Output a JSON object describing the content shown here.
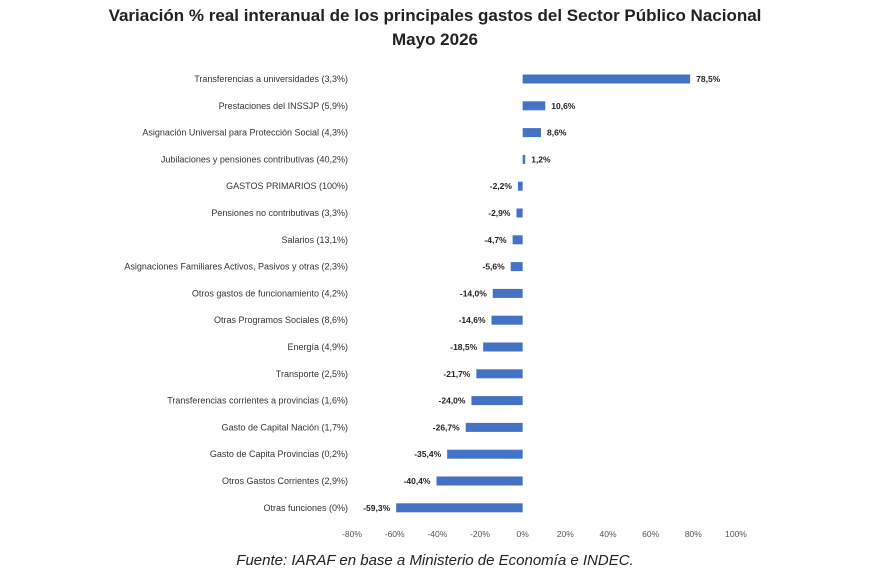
{
  "chart_data": {
    "type": "bar",
    "orientation": "horizontal",
    "title": "Variación % real interanual de los principales gastos del Sector Público Nacional",
    "subtitle": "Mayo 2026",
    "source": "Fuente: IARAF en base a Ministerio de Economía e INDEC.",
    "categories": [
      "Transferencias a universidades (3,3%)",
      "Prestaciones del INSSJP (5,9%)",
      "Asignación Universal para Protección Social (4,3%)",
      "Jubilaciones y pensiones contributivas (40,2%)",
      "GASTOS PRIMARIOS (100%)",
      "Pensiones no contributivas (3,3%)",
      "Salarios (13,1%)",
      "Asignaciones Familiares Activos, Pasivos y otras (2,3%)",
      "Otros gastos de funcionamiento (4,2%)",
      "Otras Programos Sociales  (8,6%)",
      "Energía (4,9%)",
      "Transporte (2,5%)",
      "Transferencias corrientes a provincias (1,6%)",
      "Gasto de Capital Nación (1,7%)",
      "Gasto de Capita Provincias (0,2%)",
      "Otros Gastos Corrientes     (2,9%)",
      "Otras funciones   (0%)"
    ],
    "values": [
      78.5,
      10.6,
      8.6,
      1.2,
      -2.2,
      -2.9,
      -4.7,
      -5.6,
      -14.0,
      -14.6,
      -18.5,
      -21.7,
      -24.0,
      -26.7,
      -35.4,
      -40.4,
      -59.3
    ],
    "value_labels": [
      "78,5%",
      "10,6%",
      "8,6%",
      "1,2%",
      "-2,2%",
      "-2,9%",
      "-4,7%",
      "-5,6%",
      "-14,0%",
      "-14,6%",
      "-18,5%",
      "-21,7%",
      "-24,0%",
      "-26,7%",
      "-35,4%",
      "-40,4%",
      "-59,3%"
    ],
    "xlim": [
      -80,
      100
    ],
    "xticks": [
      -80,
      -60,
      -40,
      -20,
      0,
      20,
      40,
      60,
      80,
      100
    ],
    "xtick_labels": [
      "-80%",
      "-60%",
      "-40%",
      "-20%",
      "0%",
      "20%",
      "40%",
      "60%",
      "80%",
      "100%"
    ],
    "bar_color": "#4472C4",
    "grid": false,
    "legend": "none"
  }
}
